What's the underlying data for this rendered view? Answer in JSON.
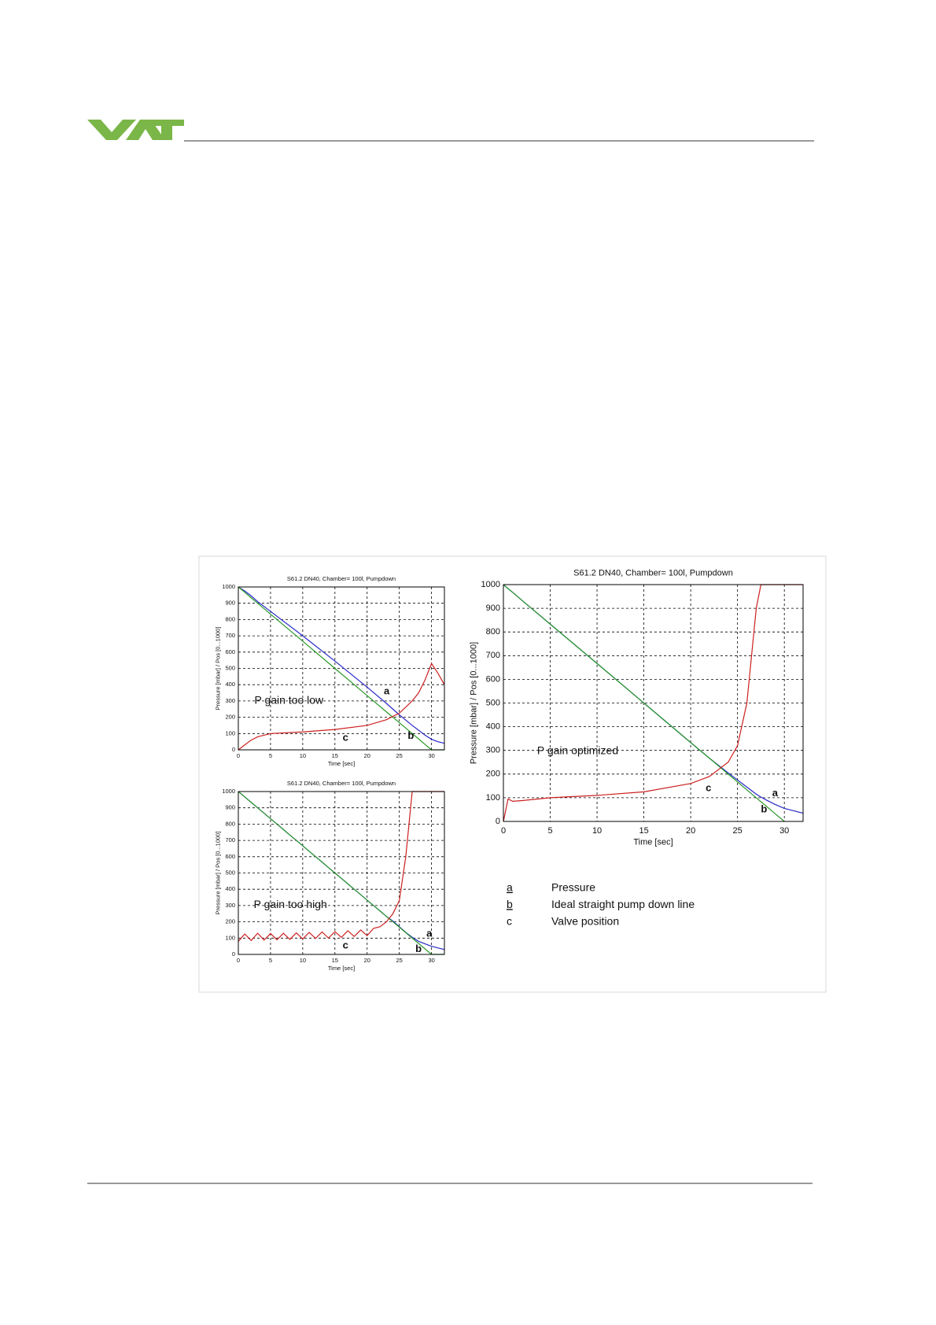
{
  "chart_data": [
    {
      "type": "line",
      "title": "S61.2 DN40, Chamber= 100l, Pumpdown",
      "x_label": "Time [sec]",
      "y_label": "Pressure [mbar] / Pos [0...1000]",
      "annotations": [
        "P gain too low"
      ],
      "x": [
        0,
        1,
        2,
        3,
        5,
        10,
        15,
        20,
        23,
        25,
        27,
        28,
        29,
        30,
        31,
        32
      ],
      "series": [
        {
          "name": "a",
          "color": "#2828c8",
          "values": [
            1000,
            975,
            945,
            910,
            850,
            700,
            545,
            385,
            285,
            215,
            150,
            120,
            90,
            65,
            50,
            40
          ]
        },
        {
          "name": "b",
          "color": "#2a9a2a",
          "values": [
            1000,
            967,
            933,
            900,
            833,
            667,
            500,
            333,
            233,
            167,
            100,
            67,
            33,
            0,
            0,
            0
          ]
        },
        {
          "name": "c",
          "color": "#cc2020",
          "values": [
            0,
            30,
            60,
            80,
            100,
            110,
            125,
            150,
            185,
            225,
            300,
            350,
            430,
            530,
            470,
            400
          ]
        }
      ],
      "xlim": [
        0,
        32
      ],
      "xticks": [
        0,
        5,
        10,
        15,
        20,
        25,
        30
      ],
      "ylim": [
        0,
        1000
      ],
      "yticks": [
        0,
        100,
        200,
        300,
        400,
        500,
        600,
        700,
        800,
        900,
        1000
      ],
      "grid": true
    },
    {
      "type": "line",
      "title": "S61.2 DN40, Chamber= 100l, Pumpdown",
      "x_label": "Time [sec]",
      "y_label": "Pressure [mbar] / Pos [0...1000]",
      "annotations": [
        "P gain too high"
      ],
      "x": [
        0,
        1,
        2,
        3,
        4,
        5,
        6,
        7,
        8,
        9,
        10,
        11,
        12,
        13,
        14,
        15,
        16,
        17,
        18,
        19,
        20,
        21,
        22,
        23,
        24,
        25,
        26,
        27,
        28,
        30,
        32
      ],
      "series": [
        {
          "name": "a",
          "color": "#2828c8",
          "values": [
            1000,
            967,
            933,
            900,
            867,
            833,
            800,
            767,
            733,
            700,
            667,
            633,
            600,
            567,
            533,
            500,
            467,
            433,
            400,
            367,
            333,
            300,
            267,
            233,
            205,
            170,
            135,
            105,
            80,
            50,
            30
          ]
        },
        {
          "name": "b",
          "color": "#2a9a2a",
          "values": [
            1000,
            967,
            933,
            900,
            867,
            833,
            800,
            767,
            733,
            700,
            667,
            633,
            600,
            567,
            533,
            500,
            467,
            433,
            400,
            367,
            333,
            300,
            267,
            233,
            200,
            167,
            133,
            100,
            67,
            0,
            0
          ]
        },
        {
          "name": "c",
          "color": "#cc2020",
          "values": [
            80,
            125,
            85,
            130,
            88,
            128,
            90,
            130,
            92,
            132,
            95,
            135,
            98,
            138,
            100,
            140,
            105,
            145,
            110,
            150,
            115,
            160,
            170,
            200,
            250,
            330,
            600,
            1000,
            1000,
            1000,
            1000
          ]
        }
      ],
      "xlim": [
        0,
        32
      ],
      "xticks": [
        0,
        5,
        10,
        15,
        20,
        25,
        30
      ],
      "ylim": [
        0,
        1000
      ],
      "yticks": [
        0,
        100,
        200,
        300,
        400,
        500,
        600,
        700,
        800,
        900,
        1000
      ],
      "grid": true
    },
    {
      "type": "line",
      "title": "S61.2 DN40, Chamber= 100l, Pumpdown",
      "x_label": "Time [sec]",
      "y_label": "Pressure [mbar] / Pos [0...1000]",
      "annotations": [
        "P gain optimized"
      ],
      "x": [
        0,
        0.5,
        1,
        2,
        5,
        10,
        15,
        20,
        22,
        24,
        25,
        26,
        27,
        27.5,
        28,
        29,
        30,
        31,
        32
      ],
      "series": [
        {
          "name": "a",
          "color": "#2828c8",
          "values": [
            1000,
            983,
            967,
            933,
            833,
            667,
            500,
            333,
            267,
            205,
            175,
            145,
            115,
            103,
            92,
            72,
            55,
            45,
            35
          ]
        },
        {
          "name": "b",
          "color": "#2a9a2a",
          "values": [
            1000,
            983,
            967,
            933,
            833,
            667,
            500,
            333,
            267,
            200,
            167,
            133,
            100,
            83,
            67,
            33,
            0,
            null,
            null
          ]
        },
        {
          "name": "c",
          "color": "#cc2020",
          "values": [
            0,
            95,
            85,
            88,
            100,
            110,
            125,
            160,
            190,
            250,
            320,
            500,
            900,
            1000,
            1000,
            1000,
            1000,
            1000,
            1000
          ]
        }
      ],
      "xlim": [
        0,
        32
      ],
      "xticks": [
        0,
        5,
        10,
        15,
        20,
        25,
        30
      ],
      "ylim": [
        0,
        1000
      ],
      "yticks": [
        0,
        100,
        200,
        300,
        400,
        500,
        600,
        700,
        800,
        900,
        1000
      ],
      "grid": true
    }
  ],
  "legend": [
    {
      "key": "a",
      "label": "Pressure"
    },
    {
      "key": "b",
      "label": "Ideal straight pump down line"
    },
    {
      "key": "c",
      "label": "Valve position"
    }
  ]
}
